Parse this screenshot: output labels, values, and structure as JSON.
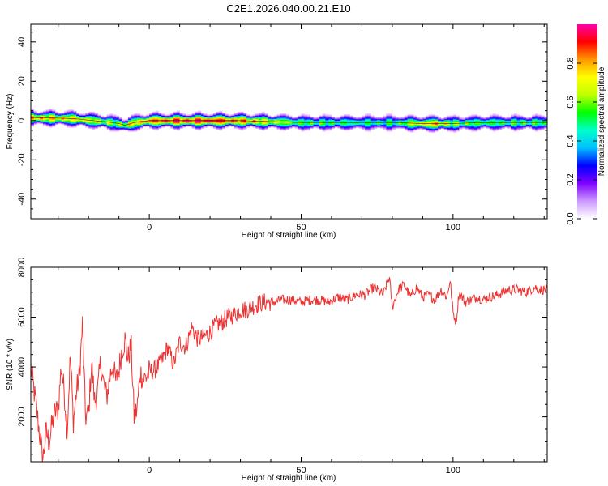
{
  "figure": {
    "title": "C2E1.2026.040.00.21.E10"
  },
  "chart_data": [
    {
      "type": "heatmap",
      "xlabel": "Height of straight line (km)",
      "ylabel": "Frequency (Hz)",
      "xlim": [
        -39,
        131
      ],
      "ylim": [
        -50,
        49
      ],
      "xticks": [
        0,
        50,
        100
      ],
      "yticks": [
        -40,
        -20,
        0,
        20,
        40
      ],
      "grid": false,
      "colorbar": {
        "label": "Normalized spectral amplitude",
        "range": [
          0,
          1
        ],
        "ticks": [
          "0.0",
          "0.2",
          "0.4",
          "0.6",
          "0.8"
        ],
        "colors": [
          "#ffffff",
          "#cc99ff",
          "#7f00ff",
          "#0000ff",
          "#00bfff",
          "#00ffcc",
          "#00ff00",
          "#bfff00",
          "#ffff00",
          "#ff9900",
          "#ff0000",
          "#ff00aa"
        ]
      },
      "ridge": {
        "x": [
          -39,
          -30,
          -25,
          -20,
          -15,
          -10,
          -8,
          -5,
          0,
          5,
          20,
          30,
          50,
          70,
          80,
          90,
          95,
          100,
          110,
          120,
          131
        ],
        "frequency": [
          1.5,
          1.2,
          1.0,
          0.2,
          -0.5,
          -1.5,
          -2.5,
          -1.0,
          0.0,
          0.0,
          0.0,
          0.0,
          -1.0,
          -1.0,
          -1.0,
          -1.5,
          -1.5,
          -1.5,
          -1.0,
          -1.0,
          -1.0
        ],
        "amplitude": [
          0.8,
          0.75,
          0.75,
          0.7,
          0.65,
          0.6,
          0.7,
          0.75,
          0.85,
          0.9,
          0.95,
          0.85,
          0.55,
          0.5,
          0.5,
          0.75,
          0.8,
          0.6,
          0.55,
          0.55,
          0.55
        ]
      }
    },
    {
      "type": "line",
      "xlabel": "Height of straight line (km)",
      "ylabel": "SNR (10 * v/v)",
      "xlim": [
        -39,
        131
      ],
      "ylim": [
        200,
        8000
      ],
      "xticks": [
        0,
        50,
        100
      ],
      "yticks": [
        2000,
        4000,
        6000,
        8000
      ],
      "grid": false,
      "series": [
        {
          "color": "#ee3333",
          "x": [
            -39,
            -37,
            -36,
            -35,
            -34,
            -33,
            -32,
            -31,
            -30,
            -29,
            -28,
            -27,
            -26,
            -25,
            -24,
            -23,
            -22,
            -21,
            -20,
            -19,
            -18,
            -17,
            -16,
            -15,
            -14,
            -13,
            -12,
            -11,
            -10,
            -9,
            -8,
            -7,
            -6,
            -5,
            -4,
            -3,
            -2,
            -1,
            0,
            2,
            4,
            6,
            8,
            10,
            12,
            14,
            16,
            18,
            20,
            22,
            24,
            26,
            28,
            30,
            32,
            35,
            38,
            41,
            44,
            47,
            50,
            53,
            56,
            59,
            62,
            65,
            68,
            71,
            74,
            77,
            79,
            80,
            82,
            84,
            86,
            88,
            90,
            92,
            94,
            96,
            98,
            99,
            100,
            101,
            102,
            104,
            106,
            108,
            110,
            112,
            115,
            118,
            121,
            124,
            127,
            129,
            131
          ],
          "y": [
            4000,
            2200,
            1200,
            300,
            1400,
            1000,
            1700,
            2200,
            2300,
            4000,
            3000,
            1500,
            4500,
            1800,
            3000,
            3700,
            5700,
            2000,
            2100,
            4200,
            2600,
            3000,
            4200,
            3300,
            2800,
            3600,
            4100,
            3400,
            3900,
            4700,
            5100,
            4300,
            4900,
            2000,
            2300,
            3800,
            3500,
            3600,
            3800,
            3900,
            4200,
            4800,
            4100,
            5000,
            4800,
            5600,
            5100,
            5200,
            5400,
            5700,
            5800,
            6000,
            6100,
            6300,
            6300,
            6500,
            6600,
            6600,
            6700,
            6700,
            6600,
            6700,
            6700,
            6600,
            6800,
            6700,
            6900,
            6900,
            7200,
            6900,
            7600,
            6400,
            7100,
            7300,
            6800,
            7200,
            6800,
            6900,
            6700,
            7100,
            6800,
            7500,
            6200,
            5800,
            7000,
            6600,
            6700,
            6800,
            6700,
            6800,
            6900,
            7100,
            7100,
            7000,
            7200,
            7100,
            7100
          ]
        }
      ]
    }
  ]
}
